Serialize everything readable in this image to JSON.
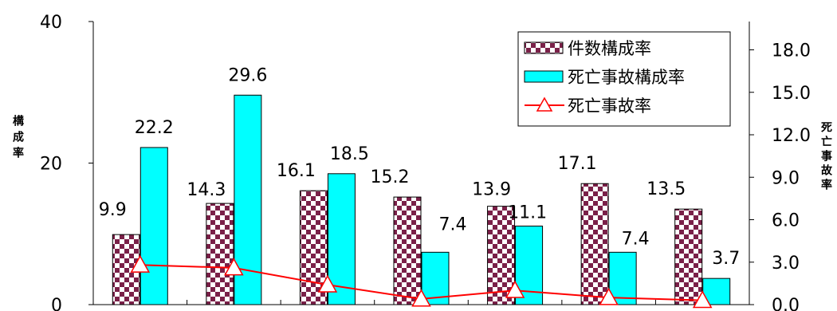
{
  "chart_data": {
    "type": "bar",
    "categories": [
      "",
      "",
      "",
      "",
      "",
      "",
      ""
    ],
    "series": [
      {
        "name": "件数構成率",
        "kind": "bar",
        "axis": "left",
        "pattern": "checker",
        "color": "#7a2048",
        "values": [
          9.9,
          14.3,
          16.1,
          15.2,
          13.9,
          17.1,
          13.5
        ]
      },
      {
        "name": "死亡事故構成率",
        "kind": "bar",
        "axis": "left",
        "color": "#00ffff",
        "values": [
          22.2,
          29.6,
          18.5,
          7.4,
          11.1,
          7.4,
          3.7
        ]
      },
      {
        "name": "死亡事故率",
        "kind": "line",
        "axis": "right",
        "marker": "triangle",
        "color": "#ff0000",
        "values": [
          2.8,
          2.6,
          1.4,
          0.4,
          1.0,
          0.5,
          0.3
        ]
      }
    ],
    "y_left": {
      "label": "構成率",
      "min": 0,
      "max": 40,
      "ticks": [
        "0",
        "20",
        "40"
      ]
    },
    "y_right": {
      "label": "死亡事故率",
      "min": 0,
      "max": 20,
      "ticks": [
        "0.0",
        "3.0",
        "6.0",
        "9.0",
        "12.0",
        "15.0",
        "18.0"
      ]
    },
    "legend": {
      "position": "top-right",
      "entries": [
        "件数構成率",
        "死亡事故構成率",
        "死亡事故率"
      ]
    },
    "grid": false
  }
}
